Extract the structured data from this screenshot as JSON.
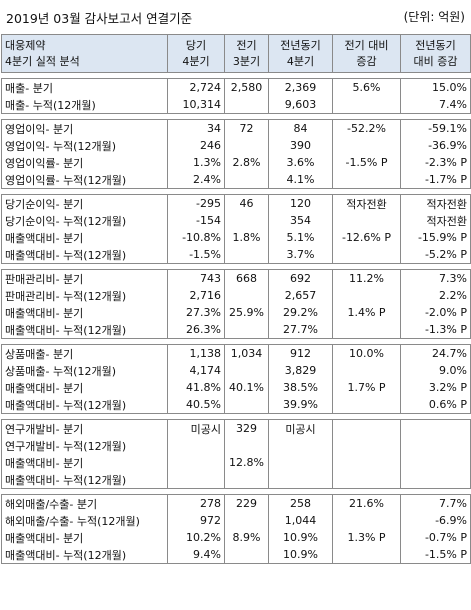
{
  "title": "2019년 03월 감사보고서 연결기준",
  "unit": "(단위: 억원)",
  "header": {
    "c0_line1": "대웅제약",
    "c0_line2": "4분기 실적 분석",
    "c1_line1": "당기",
    "c1_line2": "4분기",
    "c2_line1": "전기",
    "c2_line2": "3분기",
    "c3_line1": "전년동기",
    "c3_line2": "4분기",
    "c4_line1": "전기 대비",
    "c4_line2": "증감",
    "c5_line1": "전년동기",
    "c5_line2": "대비 증감"
  },
  "groups": [
    [
      [
        "매출- 분기",
        "2,724",
        "2,580",
        "2,369",
        "5.6%",
        "15.0%"
      ],
      [
        "매출- 누적(12개월)",
        "10,314",
        "",
        "9,603",
        "",
        "7.4%"
      ]
    ],
    [
      [
        "영업이익- 분기",
        "34",
        "72",
        "84",
        "-52.2%",
        "-59.1%"
      ],
      [
        "영업이익- 누적(12개월)",
        "246",
        "",
        "390",
        "",
        "-36.9%"
      ],
      [
        "영업이익률- 분기",
        "1.3%",
        "2.8%",
        "3.6%",
        "-1.5% P",
        "-2.3% P"
      ],
      [
        "영업이익률- 누적(12개월)",
        "2.4%",
        "",
        "4.1%",
        "",
        "-1.7% P"
      ]
    ],
    [
      [
        "당기순이익- 분기",
        "-295",
        "46",
        "120",
        "적자전환",
        "적자전환"
      ],
      [
        "당기순이익- 누적(12개월)",
        "-154",
        "",
        "354",
        "",
        "적자전환"
      ],
      [
        "매출액대비- 분기",
        "-10.8%",
        "1.8%",
        "5.1%",
        "-12.6% P",
        "-15.9% P"
      ],
      [
        "매출액대비- 누적(12개월)",
        "-1.5%",
        "",
        "3.7%",
        "",
        "-5.2% P"
      ]
    ],
    [
      [
        "판매관리비- 분기",
        "743",
        "668",
        "692",
        "11.2%",
        "7.3%"
      ],
      [
        "판매관리비- 누적(12개월)",
        "2,716",
        "",
        "2,657",
        "",
        "2.2%"
      ],
      [
        "매출액대비- 분기",
        "27.3%",
        "25.9%",
        "29.2%",
        "1.4% P",
        "-2.0% P"
      ],
      [
        "매출액대비- 누적(12개월)",
        "26.3%",
        "",
        "27.7%",
        "",
        "-1.3% P"
      ]
    ],
    [
      [
        "상품매출- 분기",
        "1,138",
        "1,034",
        "912",
        "10.0%",
        "24.7%"
      ],
      [
        "상품매출- 누적(12개월)",
        "4,174",
        "",
        "3,829",
        "",
        "9.0%"
      ],
      [
        "매출액대비- 분기",
        "41.8%",
        "40.1%",
        "38.5%",
        "1.7% P",
        "3.2% P"
      ],
      [
        "매출액대비- 누적(12개월)",
        "40.5%",
        "",
        "39.9%",
        "",
        "0.6% P"
      ]
    ],
    [
      [
        "연구개발비- 분기",
        "미공시",
        "329",
        "미공시",
        "",
        ""
      ],
      [
        "연구개발비- 누적(12개월)",
        "",
        "",
        "",
        "",
        ""
      ],
      [
        "매출액대비- 분기",
        "",
        "12.8%",
        "",
        "",
        ""
      ],
      [
        "매출액대비- 누적(12개월)",
        "",
        "",
        "",
        "",
        ""
      ]
    ],
    [
      [
        "해외매출/수출- 분기",
        "278",
        "229",
        "258",
        "21.6%",
        "7.7%"
      ],
      [
        "해외매출/수출- 누적(12개월)",
        "972",
        "",
        "1,044",
        "",
        "-6.9%"
      ],
      [
        "매출액대비- 분기",
        "10.2%",
        "8.9%",
        "10.9%",
        "1.3% P",
        "-0.7% P"
      ],
      [
        "매출액대비- 누적(12개월)",
        "9.4%",
        "",
        "10.9%",
        "",
        "-1.5% P"
      ]
    ]
  ]
}
